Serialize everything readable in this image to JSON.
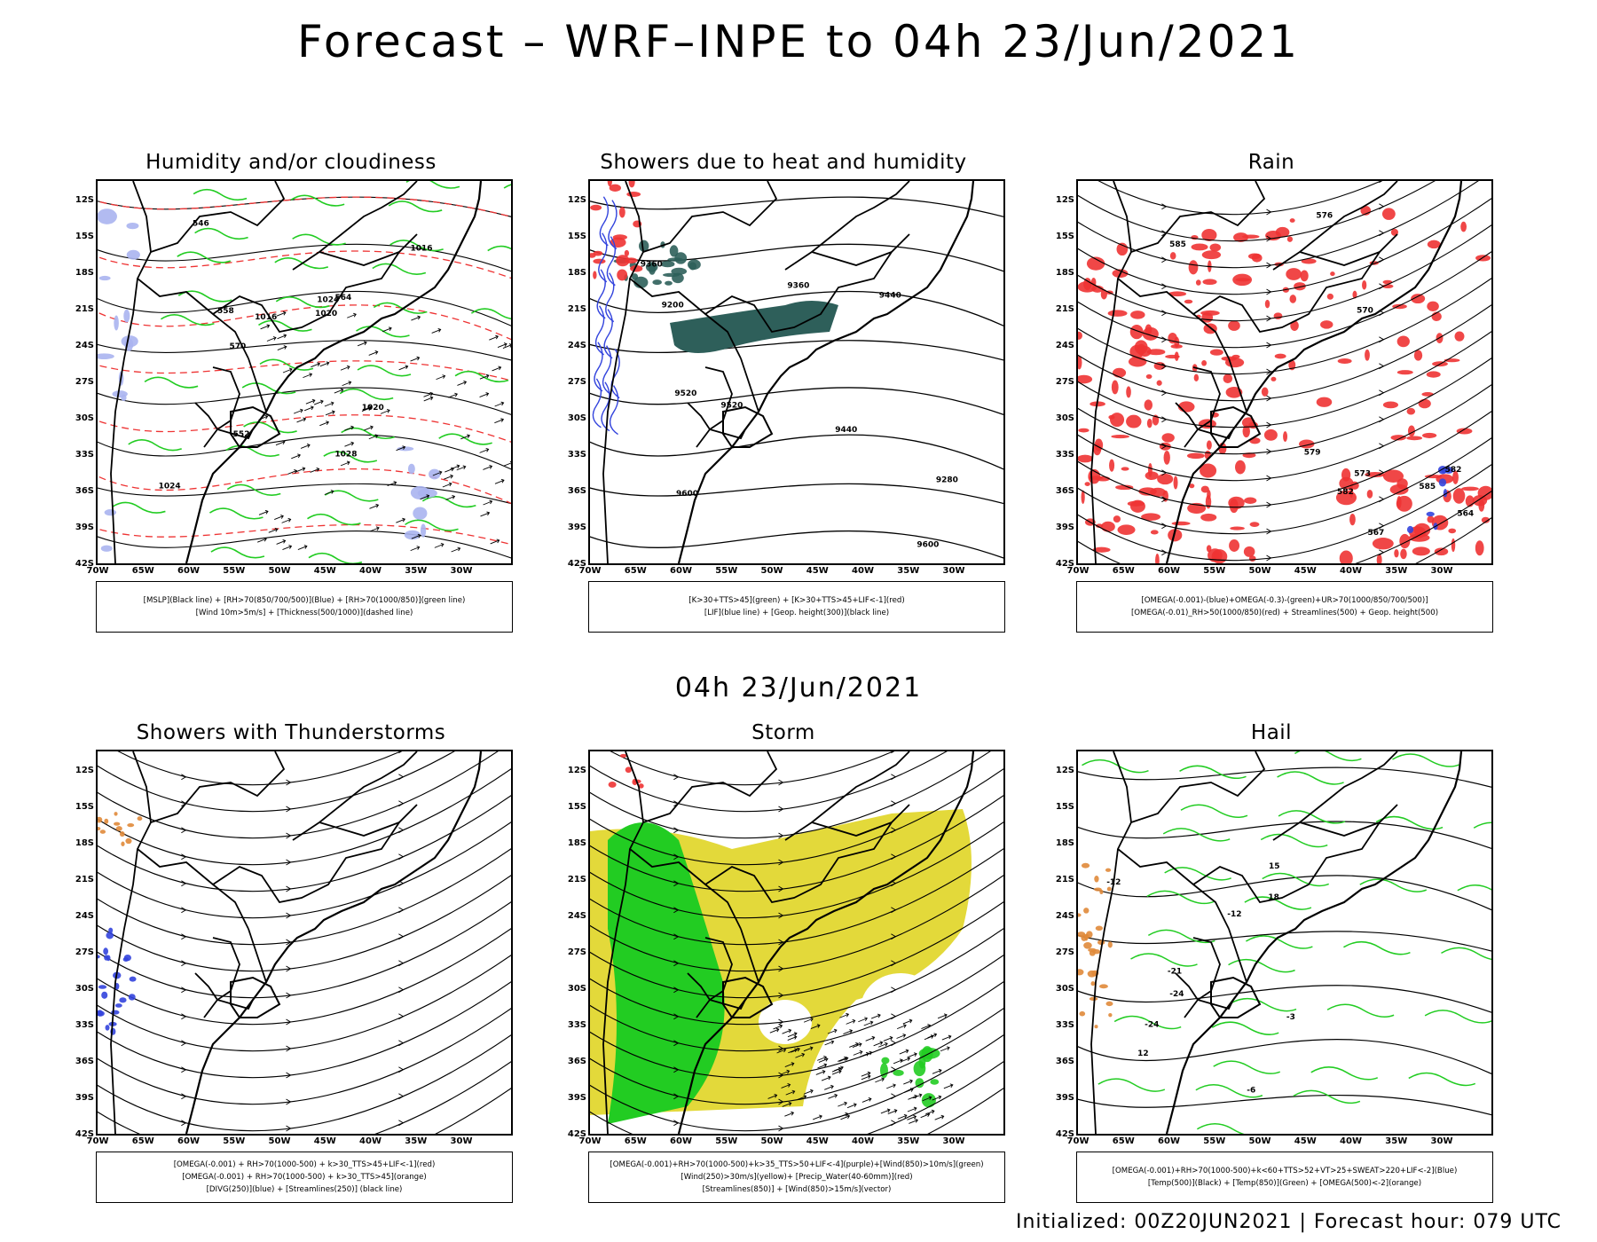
{
  "header": {
    "title": "Forecast – WRF–INPE to 04h 23/Jun/2021"
  },
  "middle": {
    "label": "04h 23/Jun/2021"
  },
  "footer": {
    "text": "Initialized: 00Z20JUN2021 | Forecast hour: 079 UTC"
  },
  "axes": {
    "lat_labels": [
      "12S",
      "15S",
      "18S",
      "21S",
      "24S",
      "27S",
      "30S",
      "33S",
      "36S",
      "39S",
      "42S"
    ],
    "lon_labels": [
      "70W",
      "65W",
      "60W",
      "55W",
      "50W",
      "45W",
      "40W",
      "35W",
      "30W"
    ]
  },
  "colors": {
    "green": "#22cc22",
    "red": "#ee3333",
    "blue": "#3344dd",
    "yellow": "#e3d93a",
    "teal": "#2e5f5a",
    "orange": "#e08a3a"
  },
  "panels": [
    {
      "title": "Humidity and/or cloudiness",
      "legend": [
        "[MSLP](Black line) + [RH>70(850/700/500)](Blue) + [RH>70(1000/850)](green line)",
        "[Wind 10m>5m/s] + [Thickness(500/1000)](dashed line)"
      ],
      "labels": [
        "1016",
        "1016",
        "1020",
        "1020",
        "1024",
        "1024",
        "1028",
        "564",
        "570",
        "552",
        "546",
        "558"
      ]
    },
    {
      "title": "Showers due to heat and humidity",
      "legend": [
        "[K>30+TTS>45](green) + [K>30+TTS>45+LIF<-1](red)",
        "[LIF](blue line) + [Geop. height(300)](black line)"
      ],
      "labels": [
        "9600",
        "9520",
        "9440",
        "9360",
        "9280",
        "9200",
        "9600",
        "9520",
        "9440",
        "9360"
      ]
    },
    {
      "title": "Rain",
      "legend": [
        "[OMEGA(-0.001)-(blue)+OMEGA(-0.3)-(green)+UR>70(1000/850/700/500)]",
        "[OMEGA(-0.01)_RH>50(1000/850)(red) + Streamlines(500) + Geop. height(500)"
      ],
      "labels": [
        "585",
        "582",
        "579",
        "576",
        "573",
        "570",
        "567",
        "564",
        "585",
        "582"
      ]
    },
    {
      "title": "Showers with Thunderstorms",
      "legend": [
        "[OMEGA(-0.001) + RH>70(1000-500) + k>30_TTS>45+LIF<-1](red)",
        "[OMEGA(-0.001) + RH>70(1000-500) + k>30_TTS>45](orange)",
        "[DIVG(250)](blue) + [Streamlines(250)] (black line)"
      ],
      "labels": []
    },
    {
      "title": "Storm",
      "legend": [
        "[OMEGA(-0.001)+RH>70(1000-500)+k>35_TTS>50+LIF<-4](purple)+[Wind(850)>10m/s](green)",
        "[Wind(250)>30m/s](yellow)+ [Precip_Water(40-60mm)](red)",
        "[Streamlines(850)] + [Wind(850)>15m/s](vector)"
      ],
      "labels": []
    },
    {
      "title": "Hail",
      "legend": [
        "[OMEGA(-0.001)+RH>70(1000-500)+k<60+TTS>52+VT>25+SWEAT>220+LIF<-2](Blue)",
        "[Temp(500)](Black) + [Temp(850)](Green) + [OMEGA(500)<-2](orange)"
      ],
      "labels": [
        "-12",
        "-12",
        "-6",
        "-24",
        "-24",
        "18",
        "15",
        "12",
        "-3",
        "-21"
      ]
    }
  ]
}
